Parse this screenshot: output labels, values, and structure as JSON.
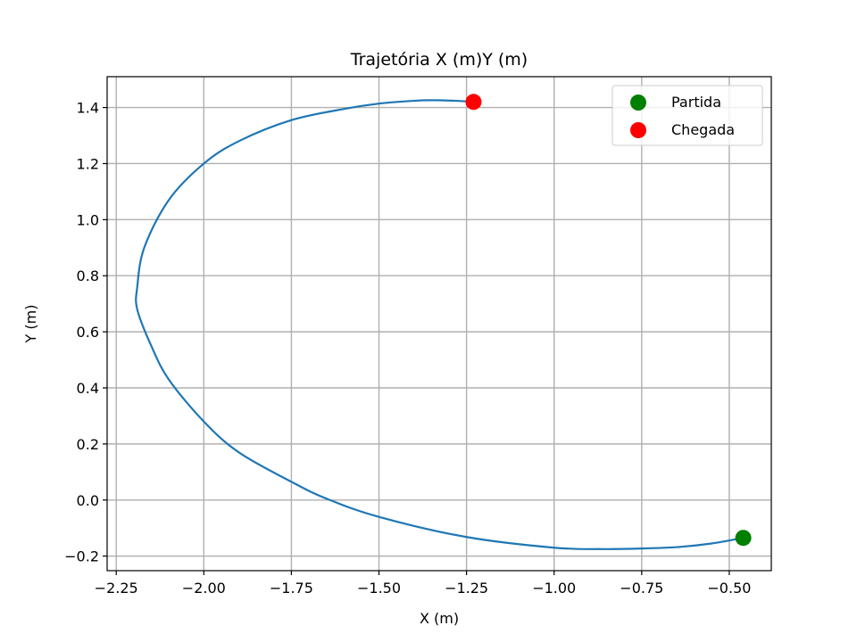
{
  "chart_data": {
    "type": "line",
    "title": "Trajetória X (m)Y (m)",
    "xlabel": "X (m)",
    "ylabel": "Y (m)",
    "xlim": [
      -2.276,
      -0.38
    ],
    "ylim": [
      -0.252,
      1.51
    ],
    "grid": true,
    "legend_position": "top-right",
    "x_ticks": [
      -2.25,
      -2.0,
      -1.75,
      -1.5,
      -1.25,
      -1.0,
      -0.75,
      -0.5
    ],
    "x_tick_labels": [
      "−2.25",
      "−2.00",
      "−1.75",
      "−1.50",
      "−1.25",
      "−1.00",
      "−0.75",
      "−0.50"
    ],
    "y_ticks": [
      -0.2,
      0.0,
      0.2,
      0.4,
      0.6,
      0.8,
      1.0,
      1.2,
      1.4
    ],
    "y_tick_labels": [
      "−0.2",
      "0.0",
      "0.2",
      "0.4",
      "0.6",
      "0.8",
      "1.0",
      "1.2",
      "1.4"
    ],
    "trajectory": {
      "color": "#1f77b4",
      "x": [
        -0.46,
        -0.55,
        -0.65,
        -0.75,
        -0.86,
        -1.0,
        -1.25,
        -1.5,
        -1.65,
        -1.75,
        -1.9,
        -2.0,
        -2.1,
        -2.15,
        -2.19,
        -2.19,
        -2.17,
        -2.1,
        -2.0,
        -1.9,
        -1.75,
        -1.6,
        -1.5,
        -1.4,
        -1.35,
        -1.28,
        -1.23
      ],
      "y": [
        -0.135,
        -0.155,
        -0.168,
        -0.173,
        -0.175,
        -0.17,
        -0.132,
        -0.06,
        0.005,
        0.065,
        0.17,
        0.28,
        0.43,
        0.55,
        0.68,
        0.76,
        0.9,
        1.07,
        1.2,
        1.28,
        1.355,
        1.395,
        1.414,
        1.424,
        1.426,
        1.424,
        1.42
      ]
    },
    "series": [
      {
        "name": "Partida",
        "x": [
          -0.46
        ],
        "y": [
          -0.135
        ],
        "color": "#008000"
      },
      {
        "name": "Chegada",
        "x": [
          -1.23
        ],
        "y": [
          1.42
        ],
        "color": "#ff0000"
      }
    ]
  }
}
